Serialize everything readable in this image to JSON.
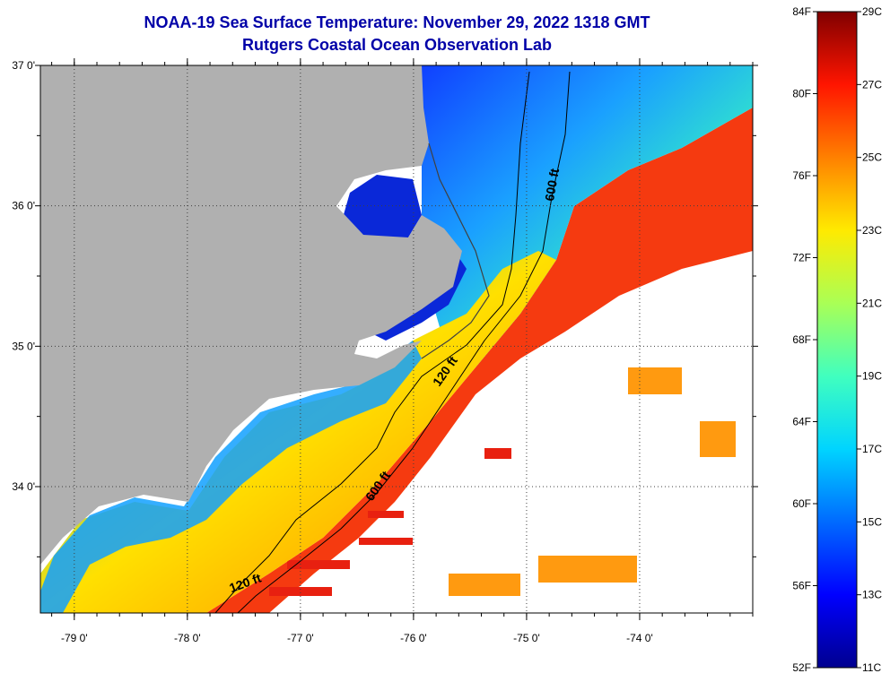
{
  "title_line1": "NOAA-19 Sea Surface Temperature:  November 29, 2022 1318 GMT",
  "title_line2": "Rutgers Coastal Ocean Observation Lab",
  "map": {
    "lat_labels": [
      "37 0'",
      "36 0'",
      "35 0'",
      "34 0'"
    ],
    "lon_labels": [
      "-79 0'",
      "-78 0'",
      "-77 0'",
      "-76 0'",
      "-75 0'",
      "-74 0'"
    ],
    "lat_range": [
      33.1,
      37.0
    ],
    "lon_range": [
      -79.3,
      -73.0
    ],
    "land_color": "#b0b0b0",
    "cloud_color": "#ffffff",
    "isobaths": [
      {
        "label": "120 ft"
      },
      {
        "label": "600 ft"
      },
      {
        "label": "120 ft"
      },
      {
        "label": "600 ft"
      }
    ]
  },
  "colorbar": {
    "f_labels": [
      "84F",
      "80F",
      "76F",
      "72F",
      "68F",
      "64F",
      "60F",
      "56F",
      "52F"
    ],
    "c_labels": [
      "29C",
      "27C",
      "25C",
      "23C",
      "21C",
      "19C",
      "17C",
      "15C",
      "13C",
      "11C"
    ],
    "min_c": 11,
    "max_c": 29,
    "stops": [
      "#00008f",
      "#0000ff",
      "#006aff",
      "#00d4ff",
      "#40ffbf",
      "#aaff55",
      "#ffea00",
      "#ff8000",
      "#ff1500",
      "#800000"
    ]
  }
}
